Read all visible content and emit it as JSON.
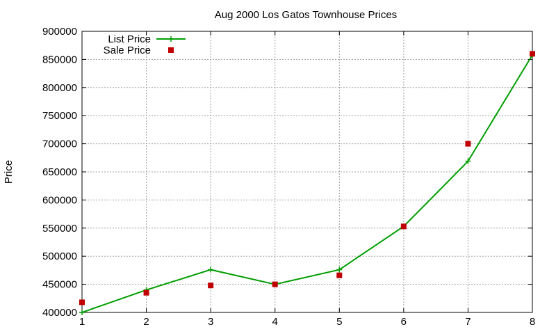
{
  "chart_data": {
    "type": "line",
    "title": "Aug 2000 Los Gatos Townhouse Prices",
    "xlabel": "",
    "ylabel": "Price",
    "x": [
      1,
      2,
      3,
      4,
      5,
      6,
      7,
      8
    ],
    "xlim": [
      1,
      8
    ],
    "ylim": [
      400000,
      900000
    ],
    "xticks": [
      "1",
      "2",
      "3",
      "4",
      "5",
      "6",
      "7",
      "8"
    ],
    "yticks": [
      "400000",
      "450000",
      "500000",
      "550000",
      "600000",
      "650000",
      "700000",
      "750000",
      "800000",
      "850000",
      "900000"
    ],
    "grid": true,
    "legend_position": "top-left",
    "series": [
      {
        "name": "List Price",
        "style": "lines+points",
        "marker": "plus",
        "color": "#009e00",
        "values": [
          400000,
          440000,
          476000,
          450000,
          476000,
          553000,
          669000,
          858000
        ]
      },
      {
        "name": "Sale Price",
        "style": "points",
        "marker": "square",
        "color": "#c00000",
        "values": [
          418000,
          435000,
          448000,
          450000,
          466000,
          553000,
          700000,
          860000
        ]
      }
    ]
  }
}
